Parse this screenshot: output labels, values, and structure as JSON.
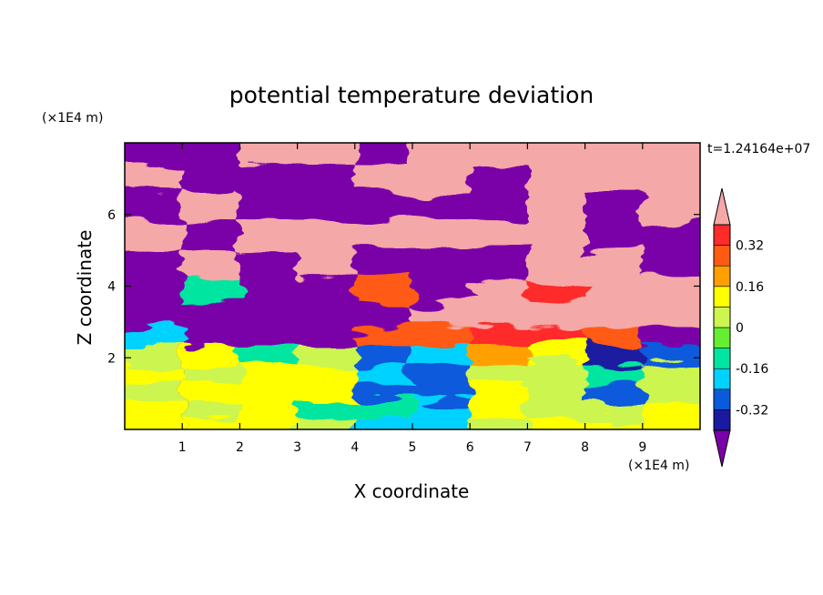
{
  "chart_data": {
    "type": "heatmap",
    "title": "potential temperature deviation",
    "xlabel": "X coordinate",
    "ylabel": "Z coordinate",
    "x_unit": "(×1E4 m)",
    "y_unit": "(×1E4 m)",
    "time_label": "t=1.24164e+07",
    "xlim": [
      0,
      10
    ],
    "ylim": [
      0,
      8
    ],
    "x_ticks": [
      1,
      2,
      3,
      4,
      5,
      6,
      7,
      8,
      9
    ],
    "y_ticks": [
      2,
      4,
      6
    ],
    "colorbar": {
      "levels": [
        -0.4,
        -0.32,
        -0.24,
        -0.16,
        -0.08,
        0,
        0.08,
        0.16,
        0.24,
        0.32,
        0.4
      ],
      "labels": [
        "-0.32",
        "-0.16",
        "0",
        "0.16",
        "0.32"
      ],
      "label_values": [
        -0.32,
        -0.16,
        0,
        0.16,
        0.32
      ],
      "colors": [
        "#7a00a8",
        "#1a1aa0",
        "#0a5adc",
        "#00d2ff",
        "#00e6a0",
        "#66ee33",
        "#ccf550",
        "#ffff00",
        "#ffa000",
        "#ff5a14",
        "#ff2a2a",
        "#f4a8a8"
      ],
      "extend": "both"
    },
    "field_rows": [
      {
        "z": 7.8,
        "v": [
          -0.42,
          -0.42,
          0.42,
          0.42,
          -0.42,
          0.42,
          0.42,
          0.42,
          0.42,
          0.42
        ]
      },
      {
        "z": 7.0,
        "v": [
          0.42,
          -0.42,
          -0.42,
          -0.42,
          0.42,
          0.42,
          -0.42,
          0.42,
          0.42,
          0.42
        ]
      },
      {
        "z": 6.2,
        "v": [
          -0.42,
          0.42,
          -0.42,
          -0.42,
          -0.42,
          -0.42,
          -0.42,
          0.42,
          -0.42,
          0.42
        ]
      },
      {
        "z": 5.4,
        "v": [
          0.42,
          -0.42,
          0.42,
          0.42,
          0.42,
          0.42,
          0.42,
          0.42,
          -0.42,
          -0.42
        ]
      },
      {
        "z": 4.6,
        "v": [
          -0.42,
          0.42,
          -0.42,
          0.42,
          -0.42,
          -0.42,
          -0.42,
          0.42,
          0.42,
          -0.42
        ]
      },
      {
        "z": 3.9,
        "v": [
          -0.42,
          -0.1,
          -0.42,
          -0.42,
          0.3,
          -0.42,
          0.42,
          0.35,
          0.42,
          0.42
        ]
      },
      {
        "z": 3.1,
        "v": [
          -0.42,
          -0.42,
          -0.42,
          -0.42,
          -0.42,
          0.42,
          0.42,
          0.42,
          0.42,
          0.42
        ]
      },
      {
        "z": 2.6,
        "v": [
          -0.2,
          -0.42,
          -0.42,
          -0.42,
          0.3,
          0.3,
          0.35,
          0.35,
          0.3,
          -0.42
        ]
      },
      {
        "z": 2.1,
        "v": [
          0.05,
          0.1,
          -0.1,
          0.05,
          -0.3,
          -0.2,
          0.2,
          0.15,
          -0.35,
          -0.3
        ]
      },
      {
        "z": 1.5,
        "v": [
          0.15,
          0.05,
          0.1,
          0.1,
          -0.2,
          -0.3,
          0.05,
          0.05,
          -0.15,
          0.05
        ]
      },
      {
        "z": 1.0,
        "v": [
          0.05,
          0.1,
          0.15,
          0.1,
          -0.3,
          -0.32,
          0.1,
          0.05,
          -0.3,
          0.05
        ]
      },
      {
        "z": 0.5,
        "v": [
          0.1,
          0.05,
          0.1,
          -0.1,
          -0.15,
          -0.2,
          0.1,
          0.05,
          0.05,
          0.1
        ]
      },
      {
        "z": 0.1,
        "v": [
          0.15,
          0.1,
          0.15,
          0.05,
          -0.2,
          -0.2,
          0.05,
          0.1,
          0.1,
          0.15
        ]
      }
    ]
  }
}
